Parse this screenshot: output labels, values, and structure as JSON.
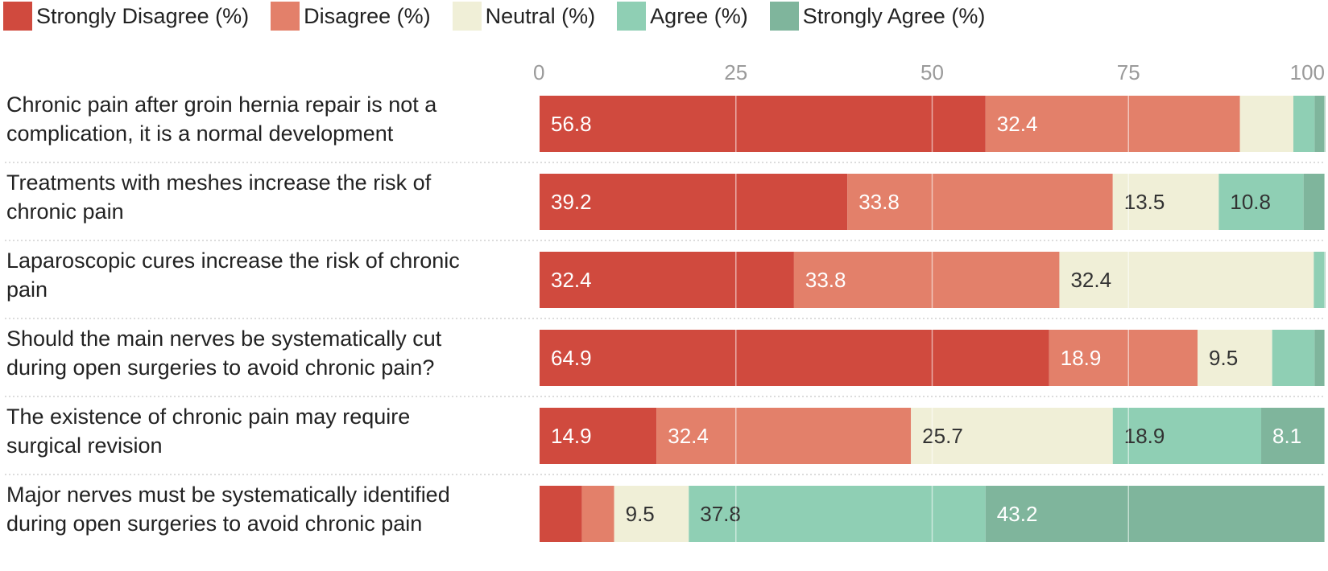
{
  "chart_data": {
    "type": "bar",
    "orientation": "horizontal",
    "stacked": true,
    "xlim": [
      0,
      100
    ],
    "ticks": [
      0,
      25,
      50,
      75,
      100
    ],
    "legend_position": "top-left",
    "grid": true,
    "categories": [
      "Chronic pain after groin hernia repair is not a complication, it is a normal development",
      "Treatments with meshes increase the risk of chronic pain",
      "Laparoscopic cures increase the risk of chronic pain",
      "Should the main nerves be systematically cut during open surgeries to avoid chronic pain?",
      "The existence of chronic pain may require surgical revision",
      "Major nerves must be systematically identified during open surgeries to avoid chronic pain"
    ],
    "series": [
      {
        "name": "Strongly Disagree (%)",
        "color": "#d04a3e",
        "label_color": "#ffffff",
        "values": [
          56.8,
          39.2,
          32.4,
          64.9,
          14.9,
          5.4
        ],
        "labels": [
          "56.8",
          "39.2",
          "32.4",
          "64.9",
          "14.9",
          ""
        ]
      },
      {
        "name": "Disagree (%)",
        "color": "#e3806a",
        "label_color": "#ffffff",
        "values": [
          32.4,
          33.8,
          33.8,
          18.9,
          32.4,
          4.1
        ],
        "labels": [
          "32.4",
          "33.8",
          "33.8",
          "18.9",
          "32.4",
          ""
        ]
      },
      {
        "name": "Neutral (%)",
        "color": "#f0efd7",
        "label_color": "#333333",
        "values": [
          6.8,
          13.5,
          32.4,
          9.5,
          25.7,
          9.5
        ],
        "labels": [
          "",
          "13.5",
          "32.4",
          "9.5",
          "25.7",
          "9.5"
        ]
      },
      {
        "name": "Agree (%)",
        "color": "#8fcfb4",
        "label_color": "#333333",
        "values": [
          2.7,
          10.8,
          1.4,
          5.4,
          18.9,
          37.8
        ],
        "labels": [
          "",
          "10.8",
          "",
          "",
          "18.9",
          "37.8"
        ]
      },
      {
        "name": "Strongly Agree (%)",
        "color": "#7fb59c",
        "label_color": "#ffffff",
        "values": [
          1.4,
          2.7,
          0.1,
          1.3,
          8.1,
          43.2
        ],
        "labels": [
          "",
          "",
          "",
          "",
          "8.1",
          "43.2"
        ]
      }
    ]
  },
  "questions": [
    {
      "line1": "Chronic pain after groin hernia repair is not a",
      "line2": "complication, it is a normal development"
    },
    {
      "line1": "Treatments with meshes increase the risk of",
      "line2": "chronic pain"
    },
    {
      "line1": "Laparoscopic cures increase the risk of chronic",
      "line2": "pain"
    },
    {
      "line1": "Should the main nerves be systematically cut",
      "line2": "during open surgeries to avoid chronic pain?"
    },
    {
      "line1": "The existence of chronic pain may require",
      "line2": "surgical revision"
    },
    {
      "line1": "Major nerves must be systematically identified",
      "line2": "during open surgeries to avoid chronic pain"
    }
  ]
}
